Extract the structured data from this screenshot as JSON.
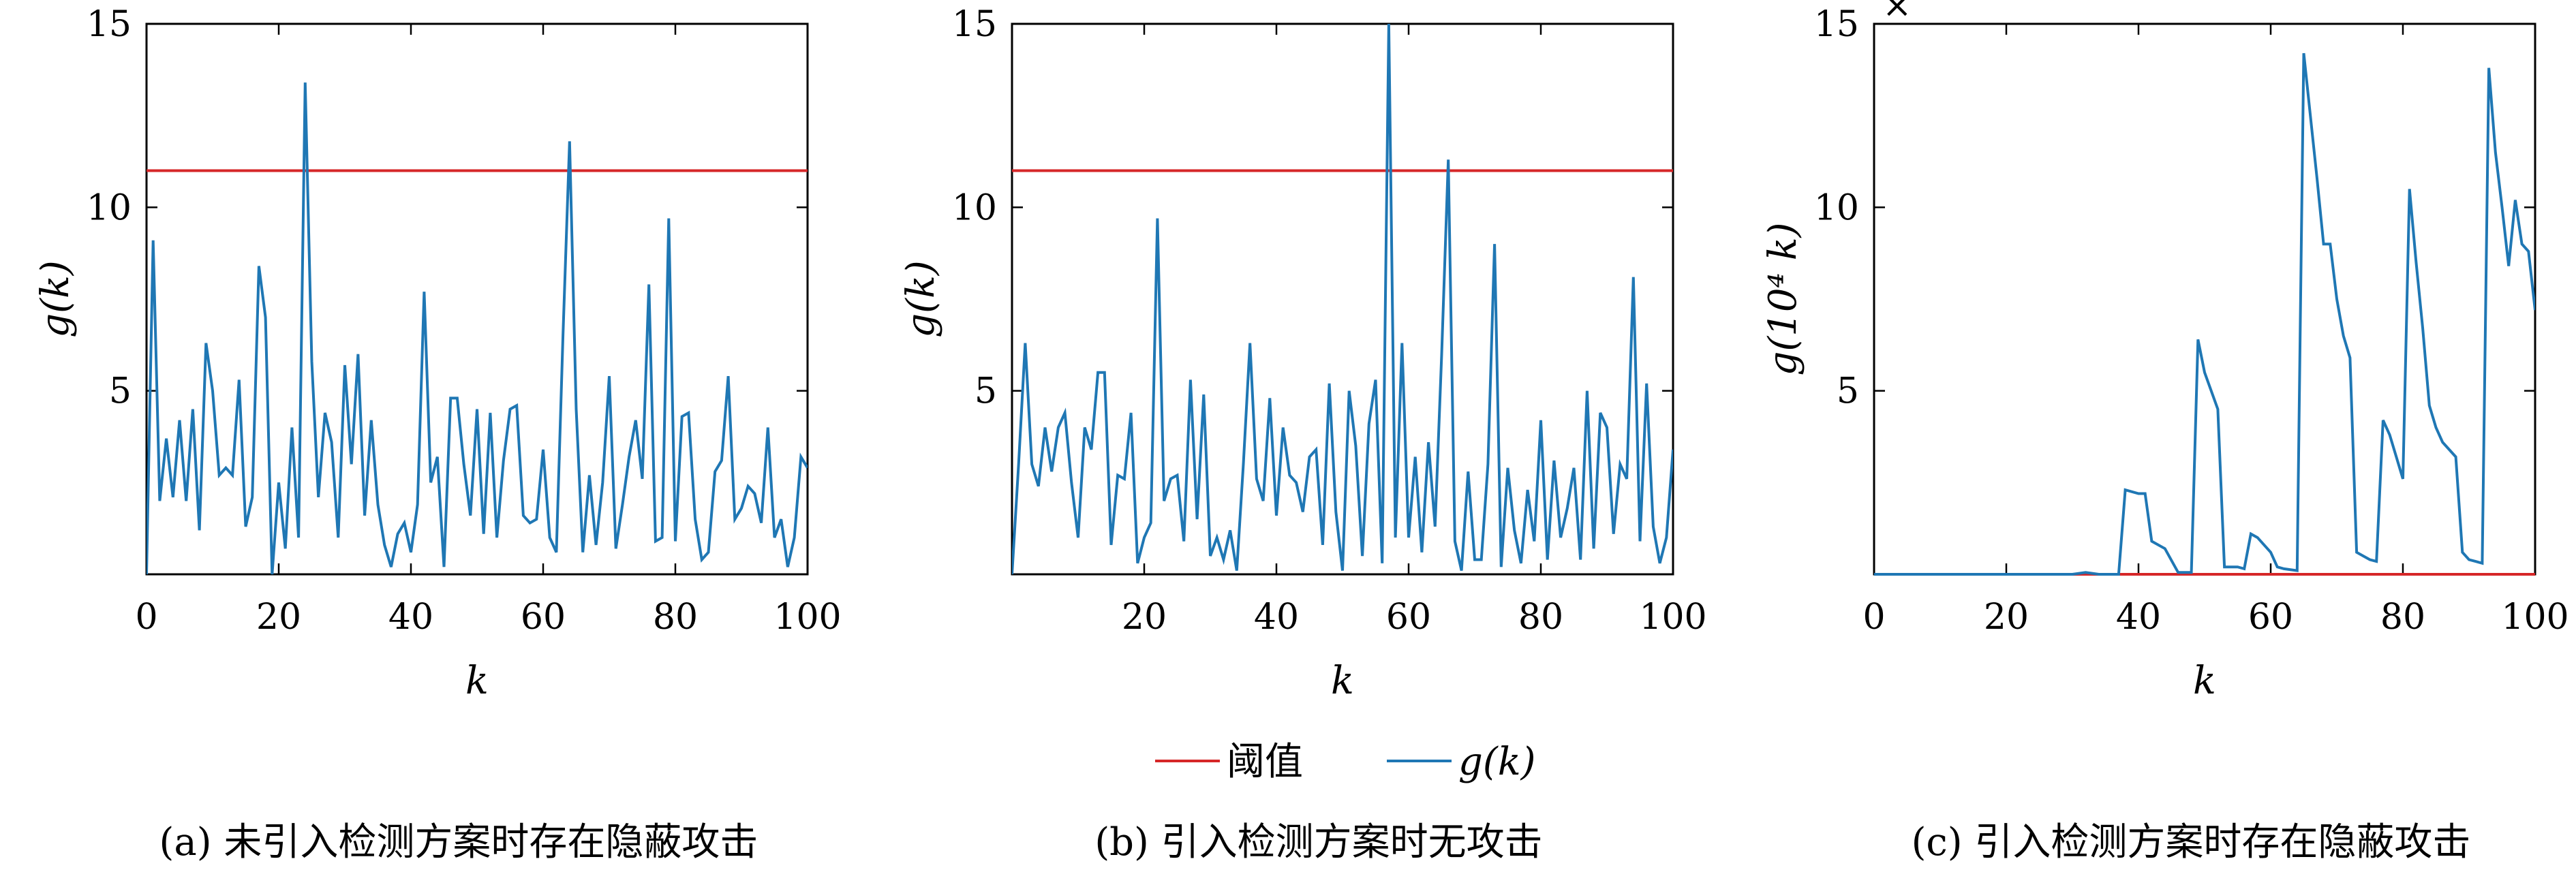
{
  "captions": [
    "(a) 未引入检测方案时存在隐蔽攻击",
    "(b) 引入检测方案时无攻击",
    "(c) 引入检测方案时存在隐蔽攻击"
  ],
  "legend": {
    "threshold_label": "阈值",
    "series_label": "g(k)",
    "placement": "bottom-center"
  },
  "colors": {
    "threshold": "#d62728",
    "series": "#1f77b4"
  },
  "chart_data": [
    {
      "type": "line",
      "xlabel": "k",
      "ylabel": "g(k)",
      "xlim": [
        0,
        100
      ],
      "ylim": [
        0,
        15
      ],
      "xticks": [
        "0",
        "20",
        "40",
        "60",
        "80",
        "100"
      ],
      "yticks": [
        "5",
        "10",
        "15"
      ],
      "grid": false,
      "series": [
        {
          "name": "阈值",
          "x": [
            0,
            100
          ],
          "y": [
            11,
            11
          ]
        },
        {
          "name": "g(k)",
          "x": [
            0,
            1,
            2,
            3,
            4,
            5,
            6,
            7,
            8,
            9,
            10,
            11,
            12,
            13,
            14,
            15,
            16,
            17,
            18,
            19,
            20,
            21,
            22,
            23,
            24,
            25,
            26,
            27,
            28,
            29,
            30,
            31,
            32,
            33,
            34,
            35,
            36,
            37,
            38,
            39,
            40,
            41,
            42,
            43,
            44,
            45,
            46,
            47,
            48,
            49,
            50,
            51,
            52,
            53,
            54,
            55,
            56,
            57,
            58,
            59,
            60,
            61,
            62,
            63,
            64,
            65,
            66,
            67,
            68,
            69,
            70,
            71,
            72,
            73,
            74,
            75,
            76,
            77,
            78,
            79,
            80,
            81,
            82,
            83,
            84,
            85,
            86,
            87,
            88,
            89,
            90,
            91,
            92,
            93,
            94,
            95,
            96,
            97,
            98,
            99,
            100
          ],
          "y": [
            0,
            9.1,
            2,
            3.7,
            2.1,
            4.2,
            2,
            4.5,
            1.2,
            6.3,
            5,
            2.7,
            2.9,
            2.7,
            5.3,
            1.3,
            2.1,
            8.4,
            7,
            0,
            2.5,
            0.7,
            4,
            1,
            13.4,
            5.8,
            2.1,
            4.4,
            3.6,
            1,
            5.7,
            3,
            6,
            1.6,
            4.2,
            1.9,
            0.8,
            0.2,
            1.1,
            1.4,
            0.6,
            1.9,
            7.7,
            2.5,
            3.2,
            0.2,
            4.8,
            4.8,
            3,
            1.6,
            4.5,
            1.1,
            4.4,
            1,
            3.1,
            4.5,
            4.6,
            1.6,
            1.4,
            1.5,
            3.4,
            1,
            0.6,
            6.5,
            11.8,
            4.5,
            0.6,
            2.7,
            0.8,
            2.5,
            5.4,
            0.7,
            1.9,
            3.2,
            4.2,
            2.6,
            7.9,
            0.9,
            1,
            9.7,
            0.9,
            4.3,
            4.4,
            1.5,
            0.4,
            0.6,
            2.8,
            3.1,
            5.4,
            1.5,
            1.8,
            2.4,
            2.2,
            1.4,
            4,
            1,
            1.5,
            0.2,
            1,
            3.2,
            2.9
          ]
        }
      ]
    },
    {
      "type": "line",
      "xlabel": "k",
      "ylabel": "g(k)",
      "xlim": [
        0,
        100
      ],
      "ylim": [
        0,
        15
      ],
      "xticks": [
        "20",
        "40",
        "60",
        "80",
        "100"
      ],
      "yticks": [
        "5",
        "10",
        "15"
      ],
      "grid": false,
      "series": [
        {
          "name": "阈值",
          "x": [
            0,
            100
          ],
          "y": [
            11,
            11
          ]
        },
        {
          "name": "g(k)",
          "x": [
            0,
            1,
            2,
            3,
            4,
            5,
            6,
            7,
            8,
            9,
            10,
            11,
            12,
            13,
            14,
            15,
            16,
            17,
            18,
            19,
            20,
            21,
            22,
            23,
            24,
            25,
            26,
            27,
            28,
            29,
            30,
            31,
            32,
            33,
            34,
            35,
            36,
            37,
            38,
            39,
            40,
            41,
            42,
            43,
            44,
            45,
            46,
            47,
            48,
            49,
            50,
            51,
            52,
            53,
            54,
            55,
            56,
            57,
            58,
            59,
            60,
            61,
            62,
            63,
            64,
            65,
            66,
            67,
            68,
            69,
            70,
            71,
            72,
            73,
            74,
            75,
            76,
            77,
            78,
            79,
            80,
            81,
            82,
            83,
            84,
            85,
            86,
            87,
            88,
            89,
            90,
            91,
            92,
            93,
            94,
            95,
            96,
            97,
            98,
            99,
            100
          ],
          "y": [
            0,
            3,
            6.3,
            3,
            2.4,
            4,
            2.8,
            4,
            4.4,
            2.5,
            1,
            4,
            3.4,
            5.5,
            5.5,
            0.8,
            2.7,
            2.6,
            4.4,
            0.3,
            1,
            1.4,
            9.7,
            2,
            2.6,
            2.7,
            0.9,
            5.3,
            1.5,
            4.9,
            0.5,
            1,
            0.4,
            1.2,
            0.1,
            3,
            6.3,
            2.6,
            2,
            4.8,
            1.6,
            4,
            2.7,
            2.5,
            1.7,
            3.2,
            3.4,
            0.8,
            5.2,
            1.7,
            0.1,
            5,
            3.5,
            0.5,
            4.1,
            5.3,
            0.3,
            15,
            1,
            6.3,
            1,
            3.2,
            0.6,
            3.6,
            1.3,
            6,
            11.3,
            0.9,
            0.1,
            2.8,
            0.4,
            0.4,
            3,
            9,
            0.2,
            2.9,
            1.2,
            0.3,
            2.3,
            0.9,
            4.2,
            0.4,
            3.1,
            1,
            1.8,
            2.9,
            0.4,
            5,
            0.7,
            4.4,
            4,
            1.1,
            3,
            2.6,
            8.1,
            0.9,
            5.2,
            1.3,
            0.3,
            1,
            3.4
          ]
        }
      ]
    },
    {
      "type": "line",
      "xlabel": "k",
      "ylabel": "g(10⁴ k)",
      "xlim": [
        0,
        100
      ],
      "ylim": [
        0,
        15
      ],
      "xticks": [
        "0",
        "20",
        "40",
        "60",
        "80",
        "100"
      ],
      "yticks": [
        "5",
        "10",
        "15"
      ],
      "grid": false,
      "series": [
        {
          "name": "阈值",
          "x": [
            0,
            100
          ],
          "y": [
            0,
            0
          ]
        },
        {
          "name": "g(k)",
          "x": [
            0,
            30,
            32,
            34,
            36,
            37,
            38,
            40,
            41,
            42,
            44,
            46,
            47,
            48,
            49,
            50,
            52,
            53,
            54,
            55,
            56,
            57,
            58,
            60,
            61,
            62,
            64,
            65,
            66,
            67,
            68,
            69,
            70,
            71,
            72,
            73,
            74,
            75,
            76,
            77,
            78,
            79,
            80,
            81,
            82,
            83,
            84,
            85,
            86,
            88,
            89,
            90,
            91,
            92,
            93,
            94,
            95,
            96,
            97,
            98,
            99,
            100
          ],
          "y": [
            0,
            0,
            0.05,
            0,
            0,
            0,
            2.3,
            2.2,
            2.2,
            0.9,
            0.7,
            0.05,
            0.05,
            0.05,
            6.4,
            5.5,
            4.5,
            0.2,
            0.2,
            0.2,
            0.15,
            1.1,
            1,
            0.6,
            0.2,
            0.15,
            0.1,
            14.2,
            12.5,
            10.8,
            9,
            9,
            7.5,
            6.5,
            5.9,
            0.6,
            0.5,
            0.4,
            0.35,
            4.2,
            3.8,
            3.2,
            2.6,
            10.5,
            8.5,
            6.7,
            4.6,
            4,
            3.6,
            3.2,
            0.6,
            0.4,
            0.35,
            0.3,
            13.8,
            11.5,
            10,
            8.4,
            10.2,
            9,
            8.8,
            7.2
          ]
        }
      ]
    }
  ]
}
